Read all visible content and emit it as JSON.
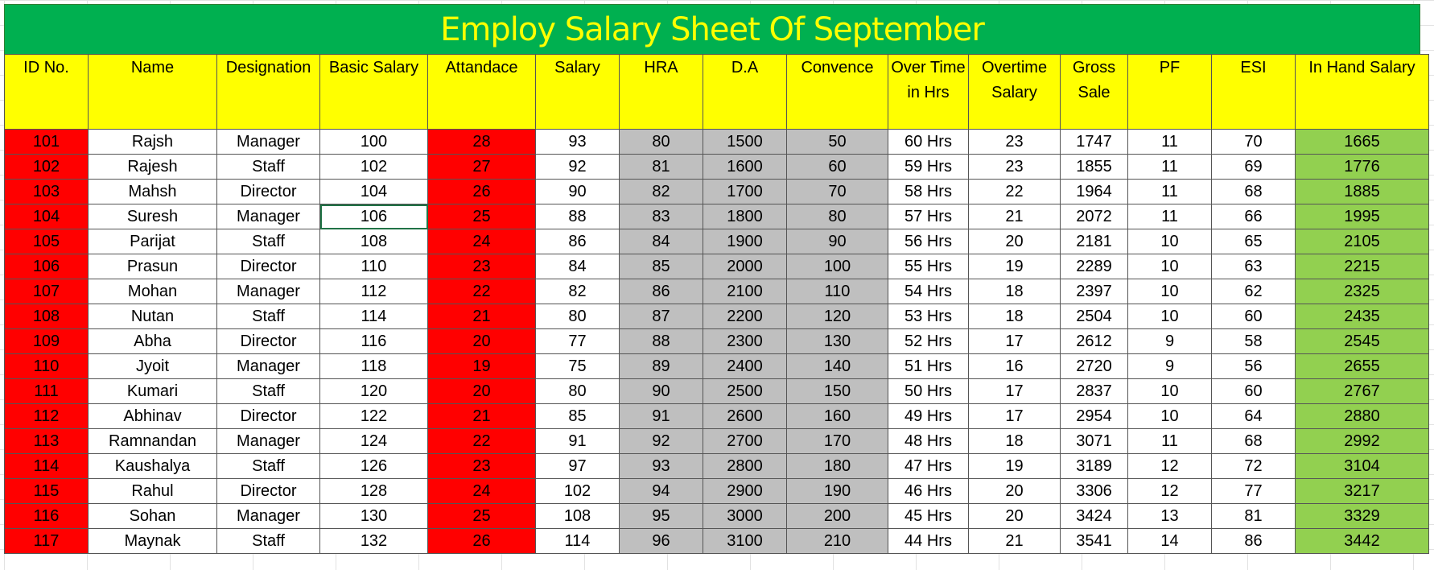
{
  "sheet": {
    "title": "Employ Salary Sheet Of September",
    "colors": {
      "title_bg": "#00b050",
      "title_text": "#ffff00",
      "header_bg": "#ffff00",
      "id_bg": "#ff0000",
      "attendance_bg": "#ff0000",
      "allowance_bg": "#bfbfbf",
      "in_hand_bg": "#92d050"
    },
    "headers": [
      "ID No.",
      "Name",
      "Designation",
      "Basic Salary",
      "Attandace",
      "Salary",
      "HRA",
      "D.A",
      "Convence",
      "Over Time in Hrs",
      "Overtime Salary",
      "Gross Sale",
      "PF",
      "ESI",
      "In Hand Salary"
    ],
    "rows": [
      [
        "101",
        "Rajsh",
        "Manager",
        "100",
        "28",
        "93",
        "80",
        "1500",
        "50",
        "60 Hrs",
        "23",
        "1747",
        "11",
        "70",
        "1665"
      ],
      [
        "102",
        "Rajesh",
        "Staff",
        "102",
        "27",
        "92",
        "81",
        "1600",
        "60",
        "59 Hrs",
        "23",
        "1855",
        "11",
        "69",
        "1776"
      ],
      [
        "103",
        "Mahsh",
        "Director",
        "104",
        "26",
        "90",
        "82",
        "1700",
        "70",
        "58 Hrs",
        "22",
        "1964",
        "11",
        "68",
        "1885"
      ],
      [
        "104",
        "Suresh",
        "Manager",
        "106",
        "25",
        "88",
        "83",
        "1800",
        "80",
        "57 Hrs",
        "21",
        "2072",
        "11",
        "66",
        "1995"
      ],
      [
        "105",
        "Parijat",
        "Staff",
        "108",
        "24",
        "86",
        "84",
        "1900",
        "90",
        "56 Hrs",
        "20",
        "2181",
        "10",
        "65",
        "2105"
      ],
      [
        "106",
        "Prasun",
        "Director",
        "110",
        "23",
        "84",
        "85",
        "2000",
        "100",
        "55 Hrs",
        "19",
        "2289",
        "10",
        "63",
        "2215"
      ],
      [
        "107",
        "Mohan",
        "Manager",
        "112",
        "22",
        "82",
        "86",
        "2100",
        "110",
        "54 Hrs",
        "18",
        "2397",
        "10",
        "62",
        "2325"
      ],
      [
        "108",
        "Nutan",
        "Staff",
        "114",
        "21",
        "80",
        "87",
        "2200",
        "120",
        "53 Hrs",
        "18",
        "2504",
        "10",
        "60",
        "2435"
      ],
      [
        "109",
        "Abha",
        "Director",
        "116",
        "20",
        "77",
        "88",
        "2300",
        "130",
        "52 Hrs",
        "17",
        "2612",
        "9",
        "58",
        "2545"
      ],
      [
        "110",
        "Jyoit",
        "Manager",
        "118",
        "19",
        "75",
        "89",
        "2400",
        "140",
        "51 Hrs",
        "16",
        "2720",
        "9",
        "56",
        "2655"
      ],
      [
        "111",
        "Kumari",
        "Staff",
        "120",
        "20",
        "80",
        "90",
        "2500",
        "150",
        "50 Hrs",
        "17",
        "2837",
        "10",
        "60",
        "2767"
      ],
      [
        "112",
        "Abhinav",
        "Director",
        "122",
        "21",
        "85",
        "91",
        "2600",
        "160",
        "49 Hrs",
        "17",
        "2954",
        "10",
        "64",
        "2880"
      ],
      [
        "113",
        "Ramnandan",
        "Manager",
        "124",
        "22",
        "91",
        "92",
        "2700",
        "170",
        "48 Hrs",
        "18",
        "3071",
        "11",
        "68",
        "2992"
      ],
      [
        "114",
        "Kaushalya",
        "Staff",
        "126",
        "23",
        "97",
        "93",
        "2800",
        "180",
        "47 Hrs",
        "19",
        "3189",
        "12",
        "72",
        "3104"
      ],
      [
        "115",
        "Rahul",
        "Director",
        "128",
        "24",
        "102",
        "94",
        "2900",
        "190",
        "46 Hrs",
        "20",
        "3306",
        "12",
        "77",
        "3217"
      ],
      [
        "116",
        "Sohan",
        "Manager",
        "130",
        "25",
        "108",
        "95",
        "3000",
        "200",
        "45 Hrs",
        "20",
        "3424",
        "13",
        "81",
        "3329"
      ],
      [
        "117",
        "Maynak",
        "Staff",
        "132",
        "26",
        "114",
        "96",
        "3100",
        "210",
        "44 Hrs",
        "21",
        "3541",
        "14",
        "86",
        "3442"
      ]
    ]
  }
}
